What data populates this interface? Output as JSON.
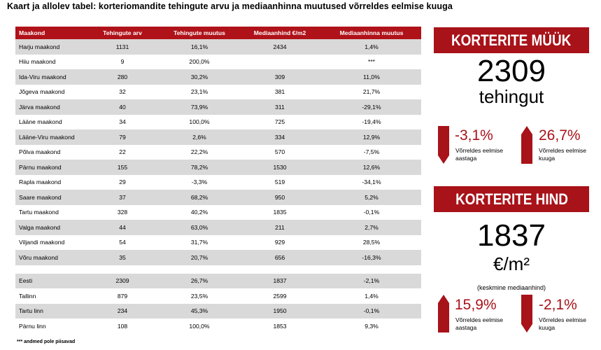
{
  "title": "Kaart ja allolev tabel: korteriomandite tehingute arvu ja mediaanhinna muutused võrreldes eelmise kuuga",
  "table": {
    "headers": [
      "Maakond",
      "Tehingute arv",
      "Tehingute muutus",
      "Mediaanhind €/m2",
      "Mediaanhinna muutus"
    ],
    "rows": [
      [
        "Harju maakond",
        "1131",
        "16,1%",
        "2434",
        "1,4%"
      ],
      [
        "Hiiu maakond",
        "9",
        "200,0%",
        "",
        "***"
      ],
      [
        "Ida-Viru maakond",
        "280",
        "30,2%",
        "309",
        "11,0%"
      ],
      [
        "Jõgeva maakond",
        "32",
        "23,1%",
        "381",
        "21,7%"
      ],
      [
        "Järva maakond",
        "40",
        "73,9%",
        "311",
        "-29,1%"
      ],
      [
        "Lääne maakond",
        "34",
        "100,0%",
        "725",
        "-19,4%"
      ],
      [
        "Lääne-Viru maakond",
        "79",
        "2,6%",
        "334",
        "12,9%"
      ],
      [
        "Põlva maakond",
        "22",
        "22,2%",
        "570",
        "-7,5%"
      ],
      [
        "Pärnu maakond",
        "155",
        "78,2%",
        "1530",
        "12,6%"
      ],
      [
        "Rapla maakond",
        "29",
        "-3,3%",
        "519",
        "-34,1%"
      ],
      [
        "Saare maakond",
        "37",
        "68,2%",
        "950",
        "5,2%"
      ],
      [
        "Tartu maakond",
        "328",
        "40,2%",
        "1835",
        "-0,1%"
      ],
      [
        "Valga maakond",
        "44",
        "63,0%",
        "211",
        "2,7%"
      ],
      [
        "Viljandi maakond",
        "54",
        "31,7%",
        "929",
        "28,5%"
      ],
      [
        "Võru maakond",
        "35",
        "20,7%",
        "656",
        "-16,3%"
      ]
    ],
    "summary_rows": [
      [
        "Eesti",
        "2309",
        "26,7%",
        "1837",
        "-2,1%"
      ],
      [
        "Tallinn",
        "879",
        "23,5%",
        "2599",
        "1,4%"
      ],
      [
        "Tartu linn",
        "234",
        "45,3%",
        "1950",
        "-0,1%"
      ],
      [
        "Pärnu linn",
        "108",
        "100,0%",
        "1853",
        "9,3%"
      ]
    ],
    "footnote": "*** andmed pole piisavad"
  },
  "sales": {
    "banner": "KORTERITE MÜÜK",
    "value": "2309",
    "unit": "tehingut",
    "change_year": {
      "value": "-3,1%",
      "label_line1": "Võrreldes eelmise",
      "label_line2": "aastaga",
      "direction": "down"
    },
    "change_month": {
      "value": "26,7%",
      "label_line1": "Võrreldes eelmise",
      "label_line2": "kuuga",
      "direction": "up"
    }
  },
  "price": {
    "banner": "KORTERITE HIND",
    "value": "1837",
    "unit": "€/m²",
    "note": "(keskmine mediaanhind)",
    "change_year": {
      "value": "15,9%",
      "label_line1": "Võrreldes eelmise",
      "label_line2": "aastaga",
      "direction": "up"
    },
    "change_month": {
      "value": "-2,1%",
      "label_line1": "Võrreldes eelmise",
      "label_line2": "kuuga",
      "direction": "down"
    }
  },
  "colors": {
    "accent": "#a81219",
    "header": "#b0121a",
    "row_shade": "#d9d9d9"
  }
}
